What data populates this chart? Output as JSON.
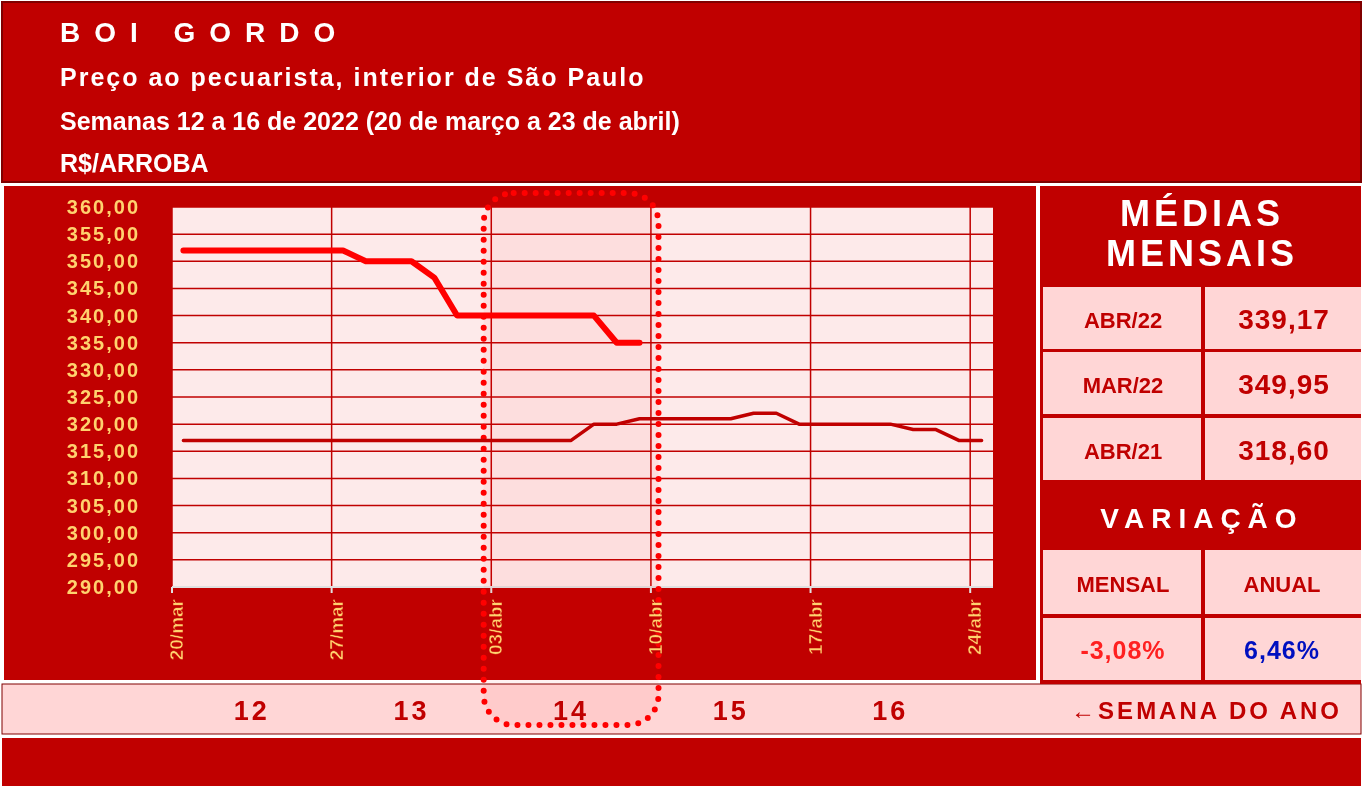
{
  "chart_data": [
    {
      "type": "line",
      "title": "BOI GORDO",
      "subtitle": "Preço ao pecuarista, interior de São Paulo",
      "ylabel": "R$/ARROBA",
      "annotations": [
        "Semanas 12 a 16 de 2022 (20 de março a 23 de abril)"
      ],
      "xlim": [
        "2022-03-20",
        "2022-04-25"
      ],
      "xticks": [
        {
          "value": "2022-03-20",
          "label": "20/mar"
        },
        {
          "value": "2022-03-27",
          "label": "27/mar"
        },
        {
          "value": "2022-04-03",
          "label": "03/abr"
        },
        {
          "value": "2022-04-10",
          "label": "10/abr"
        },
        {
          "value": "2022-04-17",
          "label": "17/abr"
        },
        {
          "value": "2022-04-24",
          "label": "24/abr"
        }
      ],
      "x2lim": [
        "2022-03-20",
        "2022-04-25"
      ],
      "x2ticks": [
        {
          "value": "2022-03-23T12:00",
          "label": "12"
        },
        {
          "value": "2022-03-30T12:00",
          "label": "13"
        },
        {
          "value": "2022-04-06T12:00",
          "label": "14"
        },
        {
          "value": "2022-04-13T12:00",
          "label": "15"
        },
        {
          "value": "2022-04-20T12:00",
          "label": "16"
        }
      ],
      "x2label": "←SEMANA DO ANO",
      "ylim": [
        290,
        360
      ],
      "yticks": [
        {
          "value": 290,
          "label": "290,00"
        },
        {
          "value": 295,
          "label": "295,00"
        },
        {
          "value": 300,
          "label": "300,00"
        },
        {
          "value": 305,
          "label": "305,00"
        },
        {
          "value": 310,
          "label": "310,00"
        },
        {
          "value": 315,
          "label": "315,00"
        },
        {
          "value": 320,
          "label": "320,00"
        },
        {
          "value": 325,
          "label": "325,00"
        },
        {
          "value": 330,
          "label": "330,00"
        },
        {
          "value": 335,
          "label": "335,00"
        },
        {
          "value": 340,
          "label": "340,00"
        },
        {
          "value": 345,
          "label": "345,00"
        },
        {
          "value": 350,
          "label": "350,00"
        },
        {
          "value": 355,
          "label": "355,00"
        },
        {
          "value": 360,
          "label": "360,00"
        }
      ],
      "grid": true,
      "marker": "none",
      "line_style": "solid",
      "bands": [
        {
          "axis": "x",
          "from": "2022-04-02T16:00",
          "to": "2022-04-10T08:00",
          "color": "#ff0000"
        }
      ],
      "series": [
        {
          "color": "#ff0000",
          "x": [
            "2022-03-20T12:00",
            "2022-03-27T12:00",
            "2022-03-28T12:00",
            "2022-03-30T12:00",
            "2022-03-31T12:00",
            "2022-04-01T12:00",
            "2022-04-07T12:00",
            "2022-04-08T12:00",
            "2022-04-09T12:00"
          ],
          "values": [
            352,
            352,
            350,
            350,
            347,
            340,
            340,
            335,
            335
          ]
        },
        {
          "color": "#c00000",
          "x": [
            "2022-03-20T12:00",
            "2022-04-06T12:00",
            "2022-04-07T12:00",
            "2022-04-08T12:00",
            "2022-04-09T12:00",
            "2022-04-13T12:00",
            "2022-04-14T12:00",
            "2022-04-15T12:00",
            "2022-04-16T12:00",
            "2022-04-20T12:00",
            "2022-04-21T12:00",
            "2022-04-22T12:00",
            "2022-04-23T12:00",
            "2022-04-24T12:00"
          ],
          "values": [
            317,
            317,
            320,
            320,
            321,
            321,
            322,
            322,
            320,
            320,
            319,
            319,
            317,
            317
          ]
        }
      ]
    },
    {
      "type": "other",
      "title": "MÉDIAS MENSAIS",
      "annotations": [
        "ABR/22",
        "339,17",
        "MAR/22",
        "349,95",
        "ABR/21",
        "318,60",
        "VARIAÇÃO",
        "MENSAL",
        "ANUAL",
        "-3,08%",
        "6,46%"
      ]
    }
  ]
}
